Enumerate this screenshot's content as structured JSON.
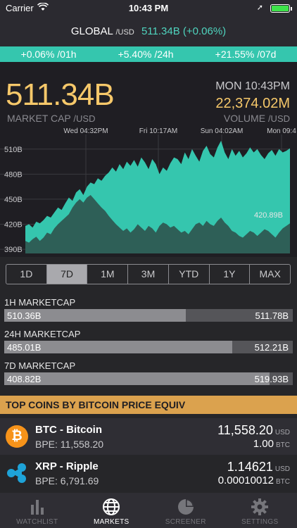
{
  "status": {
    "carrier": "Carrier",
    "time": "10:43 PM"
  },
  "header": {
    "title": "GLOBAL",
    "unit": "/USD",
    "value": "511.34B (+0.06%)"
  },
  "changes": [
    "+0.06% /01h",
    "+5.40% /24h",
    "+21.55% /07d"
  ],
  "hero": {
    "market_cap": "511.34B",
    "market_cap_label": "MARKET CAP",
    "market_cap_unit": "/USD",
    "datetime": "MON 10:43PM",
    "volume": "22,374.02M",
    "volume_label": "VOLUME",
    "volume_unit": "/USD"
  },
  "ranges": [
    "1D",
    "7D",
    "1M",
    "3M",
    "YTD",
    "1Y",
    "MAX"
  ],
  "active_range": "7D",
  "marketcaps": [
    {
      "label": "1H MARKETCAP",
      "low": "510.36B",
      "high": "511.78B",
      "fill_fraction": 0.63
    },
    {
      "label": "24H MARKETCAP",
      "low": "485.01B",
      "high": "512.21B",
      "fill_fraction": 0.79
    },
    {
      "label": "7D MARKETCAP",
      "low": "408.82B",
      "high": "519.93B",
      "fill_fraction": 0.92
    }
  ],
  "top_coins_title": "TOP COINS BY BITCOIN PRICE EQUIV",
  "coins": [
    {
      "symbol": "BTC",
      "name": "BTC - Bitcoin",
      "bpe": "BPE: 11,558.20",
      "usd": "11,558.20",
      "usd_unit": "USD",
      "btc": "1.00",
      "btc_unit": "BTC",
      "logo": "bitcoin-logo",
      "color": "#f7931a"
    },
    {
      "symbol": "XRP",
      "name": "XRP - Ripple",
      "bpe": "BPE: 6,791.69",
      "usd": "1.14621",
      "usd_unit": "USD",
      "btc": "0.00010012",
      "btc_unit": "BTC",
      "logo": "ripple-logo",
      "color": "#1ea3d8"
    }
  ],
  "tabs": [
    {
      "label": "WATCHLIST",
      "icon": "bar-chart-icon",
      "active": false
    },
    {
      "label": "MARKETS",
      "icon": "globe-icon",
      "active": true
    },
    {
      "label": "SCREENER",
      "icon": "pie-chart-icon",
      "active": false
    },
    {
      "label": "SETTINGS",
      "icon": "gear-icon",
      "active": false
    }
  ],
  "colors": {
    "accent": "#35c6ae",
    "gold": "#f6c86a",
    "banner": "#dba24e",
    "volume": "#2e5a52"
  },
  "chart_data": {
    "type": "area",
    "x_tick_labels": [
      "Wed 04:32PM",
      "Fri 10:17AM",
      "Sun 04:02AM",
      "Mon 09:4"
    ],
    "y_tick_labels": [
      "390B",
      "420B",
      "450B",
      "480B",
      "510B"
    ],
    "ylim": [
      385,
      525
    ],
    "last_value_label": "420.89B",
    "series": [
      {
        "values": [
          418,
          420,
          416,
          423,
          421,
          425,
          430,
          428,
          434,
          440,
          437,
          445,
          452,
          448,
          458,
          462,
          455,
          465,
          470,
          468,
          475,
          472,
          478,
          482,
          488,
          483,
          492,
          486,
          495,
          490,
          497,
          489,
          500,
          494,
          486,
          498,
          492,
          480,
          488,
          484,
          493,
          500,
          498,
          492,
          506,
          498,
          510,
          502,
          495,
          508,
          514,
          504,
          500,
          512,
          520,
          506,
          498,
          510,
          502,
          508,
          500,
          505,
          512,
          506,
          510,
          503,
          498,
          505,
          509,
          502,
          510,
          506,
          508,
          511
        ]
      },
      {
        "values": [
          400,
          398,
          402,
          405,
          400,
          404,
          410,
          408,
          415,
          420,
          424,
          428,
          432,
          440,
          446,
          450,
          446,
          452,
          455,
          450,
          445,
          440,
          436,
          430,
          425,
          420,
          416,
          412,
          415,
          410,
          414,
          420,
          416,
          412,
          418,
          415,
          410,
          418,
          422,
          420,
          416,
          418,
          414,
          410,
          412,
          408,
          414,
          420,
          422,
          418,
          424,
          420,
          418,
          424,
          428,
          422,
          418,
          412,
          410,
          406,
          404,
          408,
          412,
          410,
          406,
          410,
          414,
          412,
          408,
          404,
          410,
          415,
          418,
          421
        ]
      }
    ]
  }
}
